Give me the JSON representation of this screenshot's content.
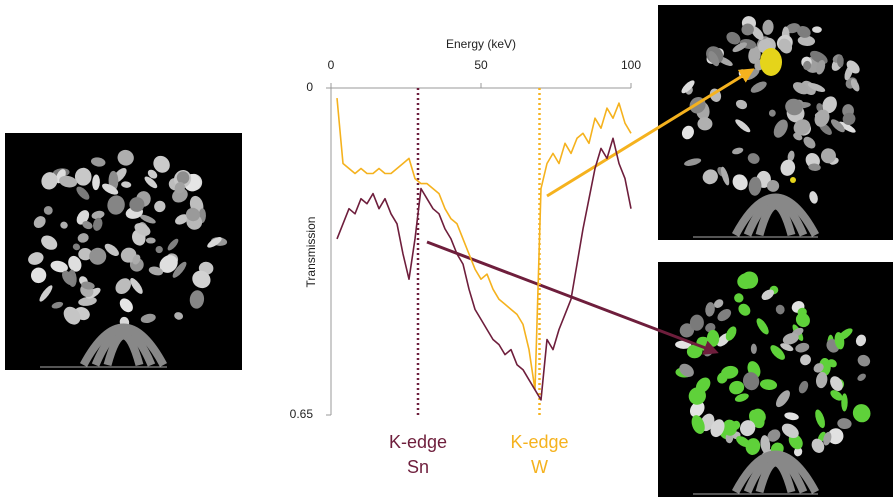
{
  "chart_data": {
    "type": "line",
    "x_label": "Energy (keV)",
    "y_label": "Transmission",
    "xlim": [
      0,
      100
    ],
    "xticks": [
      0,
      50,
      100
    ],
    "ylim": [
      0,
      0.65
    ],
    "yticks": [
      0,
      0.65
    ],
    "y_inverted": true,
    "x_axis_position": "top",
    "x": [
      2,
      4,
      6,
      8,
      10,
      12,
      14,
      16,
      18,
      20,
      22,
      24,
      26,
      28,
      30,
      32,
      34,
      36,
      38,
      40,
      42,
      44,
      46,
      48,
      50,
      52,
      54,
      56,
      58,
      60,
      62,
      64,
      66,
      68,
      70,
      72,
      74,
      76,
      78,
      80,
      82,
      84,
      86,
      88,
      90,
      92,
      94,
      96,
      98,
      100
    ],
    "series": [
      {
        "name": "W",
        "color": "#f5b21e",
        "values": [
          0.02,
          0.15,
          0.16,
          0.17,
          0.16,
          0.17,
          0.17,
          0.16,
          0.17,
          0.17,
          0.16,
          0.15,
          0.14,
          0.18,
          0.19,
          0.19,
          0.2,
          0.21,
          0.24,
          0.26,
          0.27,
          0.3,
          0.33,
          0.36,
          0.38,
          0.37,
          0.4,
          0.42,
          0.43,
          0.44,
          0.45,
          0.47,
          0.52,
          0.6,
          0.2,
          0.15,
          0.13,
          0.15,
          0.11,
          0.13,
          0.1,
          0.09,
          0.11,
          0.06,
          0.08,
          0.04,
          0.06,
          0.03,
          0.07,
          0.09
        ]
      },
      {
        "name": "Sn",
        "color": "#6e1e3c",
        "values": [
          0.3,
          0.27,
          0.24,
          0.25,
          0.22,
          0.23,
          0.21,
          0.24,
          0.22,
          0.25,
          0.27,
          0.33,
          0.38,
          0.3,
          0.2,
          0.22,
          0.24,
          0.25,
          0.28,
          0.3,
          0.33,
          0.35,
          0.4,
          0.44,
          0.46,
          0.48,
          0.5,
          0.51,
          0.53,
          0.52,
          0.55,
          0.56,
          0.58,
          0.6,
          0.62,
          0.5,
          0.52,
          0.48,
          0.45,
          0.42,
          0.35,
          0.28,
          0.22,
          0.16,
          0.12,
          0.14,
          0.1,
          0.15,
          0.18,
          0.24
        ]
      }
    ],
    "edges": [
      {
        "x": 29,
        "color": "#6e1e3c",
        "label": [
          "K-edge",
          "Sn"
        ]
      },
      {
        "x": 69.5,
        "color": "#f5b21e",
        "label": [
          "K-edge",
          "W"
        ]
      }
    ]
  }
}
